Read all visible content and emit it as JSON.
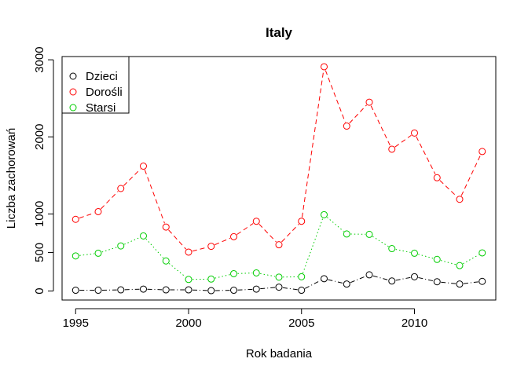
{
  "chart_data": {
    "type": "line",
    "title": "Italy",
    "xlabel": "Rok badania",
    "ylabel": "Liczba zachorowań",
    "xlim": [
      1994.35,
      1995.65
    ],
    "x_range": [
      1994.4,
      2013.6
    ],
    "ylim": [
      -117,
      3042
    ],
    "x_ticks": [
      1995,
      2000,
      2005,
      2010
    ],
    "y_ticks": [
      0,
      500,
      1000,
      2000,
      3000
    ],
    "legend_position": "top-left",
    "x": [
      1995,
      1996,
      1997,
      1998,
      1999,
      2000,
      2001,
      2002,
      2003,
      2004,
      2005,
      2006,
      2007,
      2008,
      2009,
      2010,
      2011,
      2012,
      2013
    ],
    "series": [
      {
        "name": "Dzieci",
        "color": "#000000",
        "line_style": "dashed-dot",
        "values": [
          10,
          10,
          15,
          25,
          15,
          15,
          5,
          10,
          25,
          50,
          10,
          160,
          90,
          210,
          130,
          185,
          120,
          90,
          125
        ]
      },
      {
        "name": "Dorośli",
        "color": "#ff0000",
        "line_style": "dashed",
        "values": [
          930,
          1030,
          1330,
          1620,
          830,
          505,
          580,
          705,
          905,
          600,
          905,
          2910,
          2140,
          2450,
          1840,
          2050,
          1470,
          1190,
          1810
        ]
      },
      {
        "name": "Starsi",
        "color": "#00cd00",
        "line_style": "dotted",
        "values": [
          455,
          490,
          585,
          715,
          390,
          150,
          155,
          225,
          235,
          180,
          185,
          990,
          740,
          735,
          550,
          490,
          410,
          330,
          495
        ]
      }
    ]
  }
}
